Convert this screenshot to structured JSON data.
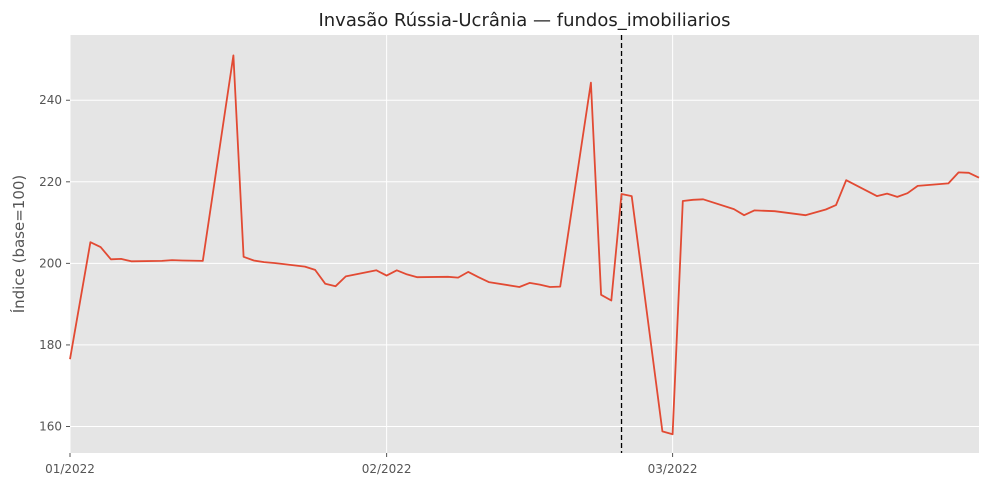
{
  "chart_data": {
    "type": "line",
    "title": "Invasão Rússia-Ucrânia — fundos_imobiliarios",
    "xlabel": "",
    "ylabel": "Índice (base=100)",
    "x_tick_labels": [
      "01/2022",
      "02/2022",
      "03/2022"
    ],
    "x_ticks": [
      "2022-01-01",
      "2022-02-01",
      "2022-03-01"
    ],
    "x_range": [
      "2022-01-01",
      "2022-03-31"
    ],
    "y_ticks": [
      160,
      180,
      200,
      220,
      240
    ],
    "ylim": [
      153.5,
      256
    ],
    "grid": true,
    "event_line": {
      "x": "2022-02-24",
      "style": "dashed",
      "color": "#000000"
    },
    "series": [
      {
        "color": "#E24A33",
        "points": [
          [
            "2022-01-01",
            176.5
          ],
          [
            "2022-01-03",
            205.2
          ],
          [
            "2022-01-04",
            204.0
          ],
          [
            "2022-01-05",
            201.0
          ],
          [
            "2022-01-06",
            201.1
          ],
          [
            "2022-01-07",
            200.5
          ],
          [
            "2022-01-10",
            200.6
          ],
          [
            "2022-01-11",
            200.8
          ],
          [
            "2022-01-12",
            200.7
          ],
          [
            "2022-01-14",
            200.6
          ],
          [
            "2022-01-17",
            251.0
          ],
          [
            "2022-01-18",
            201.6
          ],
          [
            "2022-01-19",
            200.7
          ],
          [
            "2022-01-20",
            200.3
          ],
          [
            "2022-01-21",
            200.1
          ],
          [
            "2022-01-24",
            199.2
          ],
          [
            "2022-01-25",
            198.4
          ],
          [
            "2022-01-26",
            195.0
          ],
          [
            "2022-01-27",
            194.4
          ],
          [
            "2022-01-28",
            196.8
          ],
          [
            "2022-01-31",
            198.3
          ],
          [
            "2022-02-01",
            197.0
          ],
          [
            "2022-02-02",
            198.3
          ],
          [
            "2022-02-03",
            197.3
          ],
          [
            "2022-02-04",
            196.6
          ],
          [
            "2022-02-07",
            196.7
          ],
          [
            "2022-02-08",
            196.5
          ],
          [
            "2022-02-09",
            197.9
          ],
          [
            "2022-02-10",
            196.6
          ],
          [
            "2022-02-11",
            195.4
          ],
          [
            "2022-02-14",
            194.2
          ],
          [
            "2022-02-15",
            195.2
          ],
          [
            "2022-02-16",
            194.8
          ],
          [
            "2022-02-17",
            194.2
          ],
          [
            "2022-02-18",
            194.3
          ],
          [
            "2022-02-21",
            244.3
          ],
          [
            "2022-02-22",
            192.3
          ],
          [
            "2022-02-23",
            190.9
          ],
          [
            "2022-02-24",
            217.0
          ],
          [
            "2022-02-25",
            216.5
          ],
          [
            "2022-02-28",
            158.8
          ],
          [
            "2022-03-01",
            158.1
          ],
          [
            "2022-03-02",
            215.3
          ],
          [
            "2022-03-03",
            215.6
          ],
          [
            "2022-03-04",
            215.7
          ],
          [
            "2022-03-07",
            213.3
          ],
          [
            "2022-03-08",
            211.8
          ],
          [
            "2022-03-09",
            213.0
          ],
          [
            "2022-03-11",
            212.8
          ],
          [
            "2022-03-14",
            211.8
          ],
          [
            "2022-03-16",
            213.2
          ],
          [
            "2022-03-17",
            214.3
          ],
          [
            "2022-03-18",
            220.4
          ],
          [
            "2022-03-21",
            216.5
          ],
          [
            "2022-03-22",
            217.1
          ],
          [
            "2022-03-23",
            216.3
          ],
          [
            "2022-03-24",
            217.2
          ],
          [
            "2022-03-25",
            219.0
          ],
          [
            "2022-03-28",
            219.6
          ],
          [
            "2022-03-29",
            222.3
          ],
          [
            "2022-03-30",
            222.2
          ],
          [
            "2022-03-31",
            221.0
          ]
        ]
      }
    ]
  }
}
